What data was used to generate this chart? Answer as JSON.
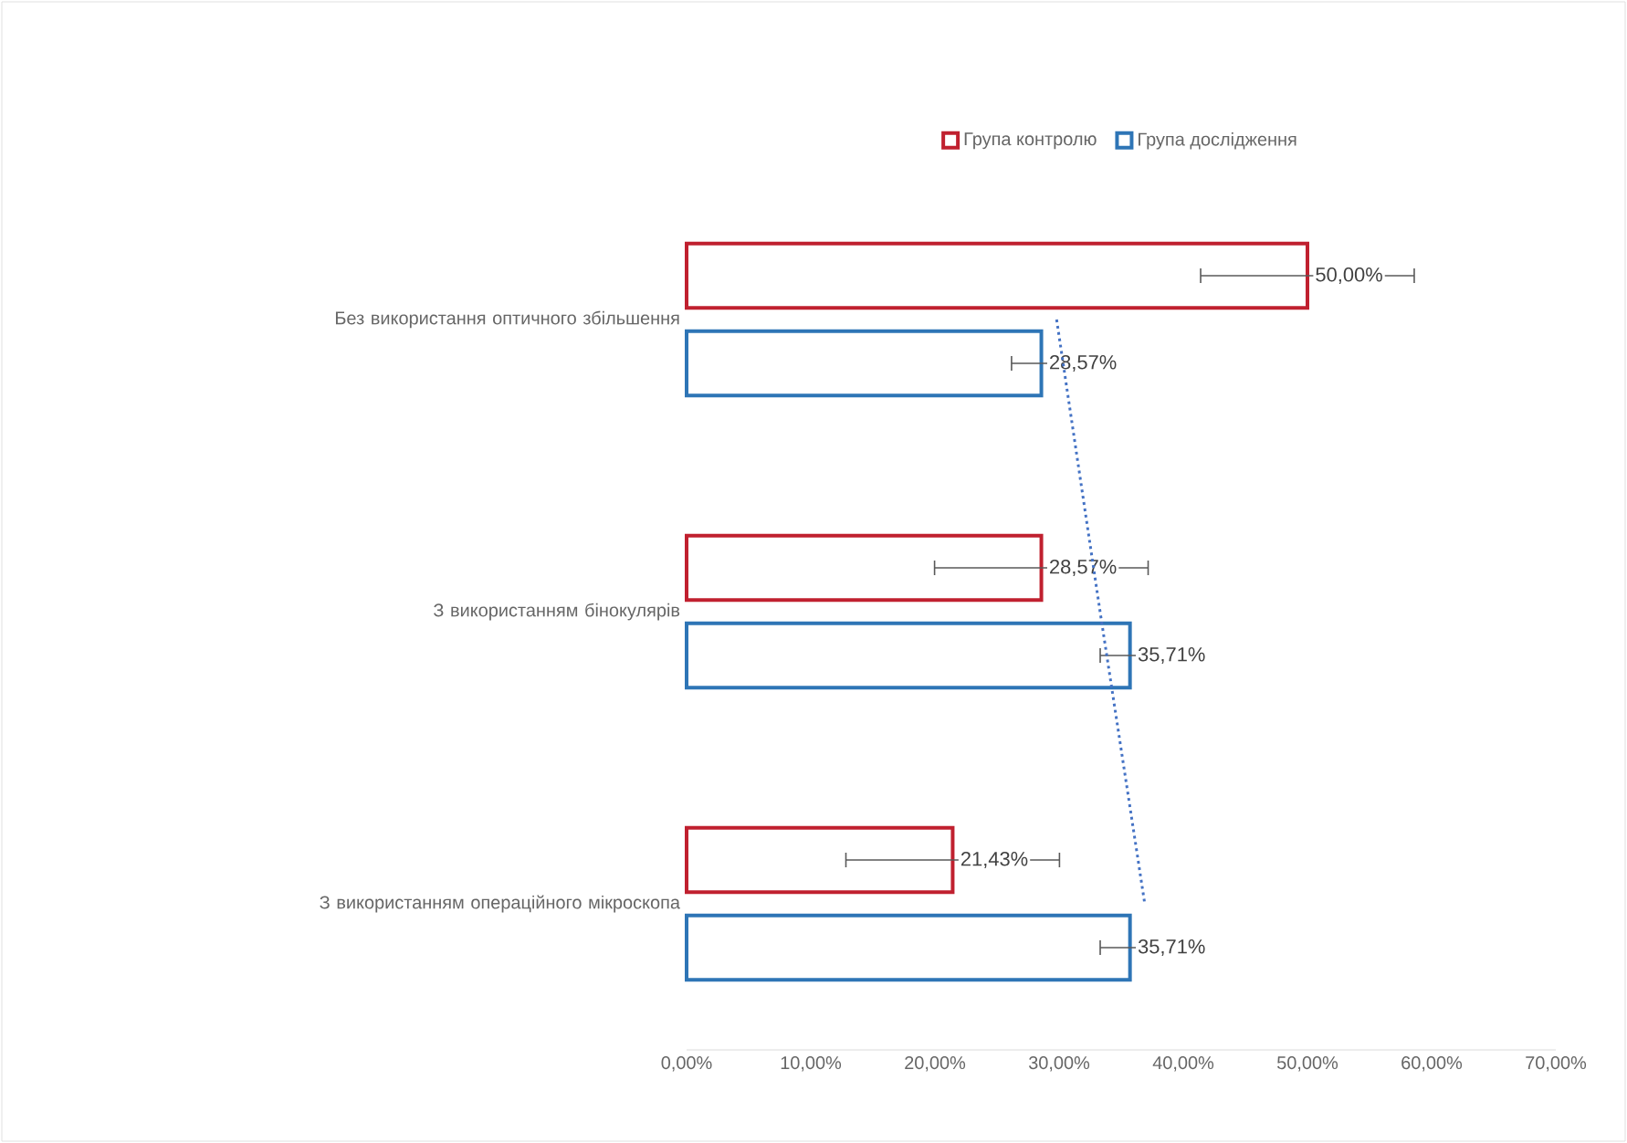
{
  "chart_data": {
    "type": "bar",
    "orientation": "horizontal",
    "legend": "top",
    "categories": [
      "Без використання оптичного збільшення",
      "З використанням бінокулярів",
      "З використанням операційного мікроскопа"
    ],
    "series": [
      {
        "name": "Група контролю",
        "color": "#c0202f",
        "values": [
          50,
          28.57,
          21.43
        ],
        "errors": [
          8.6,
          8.6,
          8.6
        ],
        "value_labels": [
          "50,00%",
          "28,57%",
          "21,43%"
        ]
      },
      {
        "name": "Група дослідження",
        "color": "#2e75b6",
        "values": [
          28.57,
          35.71,
          35.71
        ],
        "errors": [
          2.4,
          2.4,
          2.4
        ],
        "value_labels": [
          "28,57%",
          "35,71%",
          "35,71%"
        ]
      },
      {
        "type": "line",
        "color": "#4472c4",
        "line_style": "dotted",
        "values": [
          29.8,
          33.3,
          36.9
        ]
      }
    ],
    "xlim": [
      0,
      70
    ],
    "xticks": [
      {
        "value": 0,
        "label": "0,00%"
      },
      {
        "value": 10,
        "label": "10,00%"
      },
      {
        "value": 20,
        "label": "20,00%"
      },
      {
        "value": 30,
        "label": "30,00%"
      },
      {
        "value": 40,
        "label": "40,00%"
      },
      {
        "value": 50,
        "label": "50,00%"
      },
      {
        "value": 60,
        "label": "60,00%"
      },
      {
        "value": 70,
        "label": "70,00%"
      }
    ]
  }
}
